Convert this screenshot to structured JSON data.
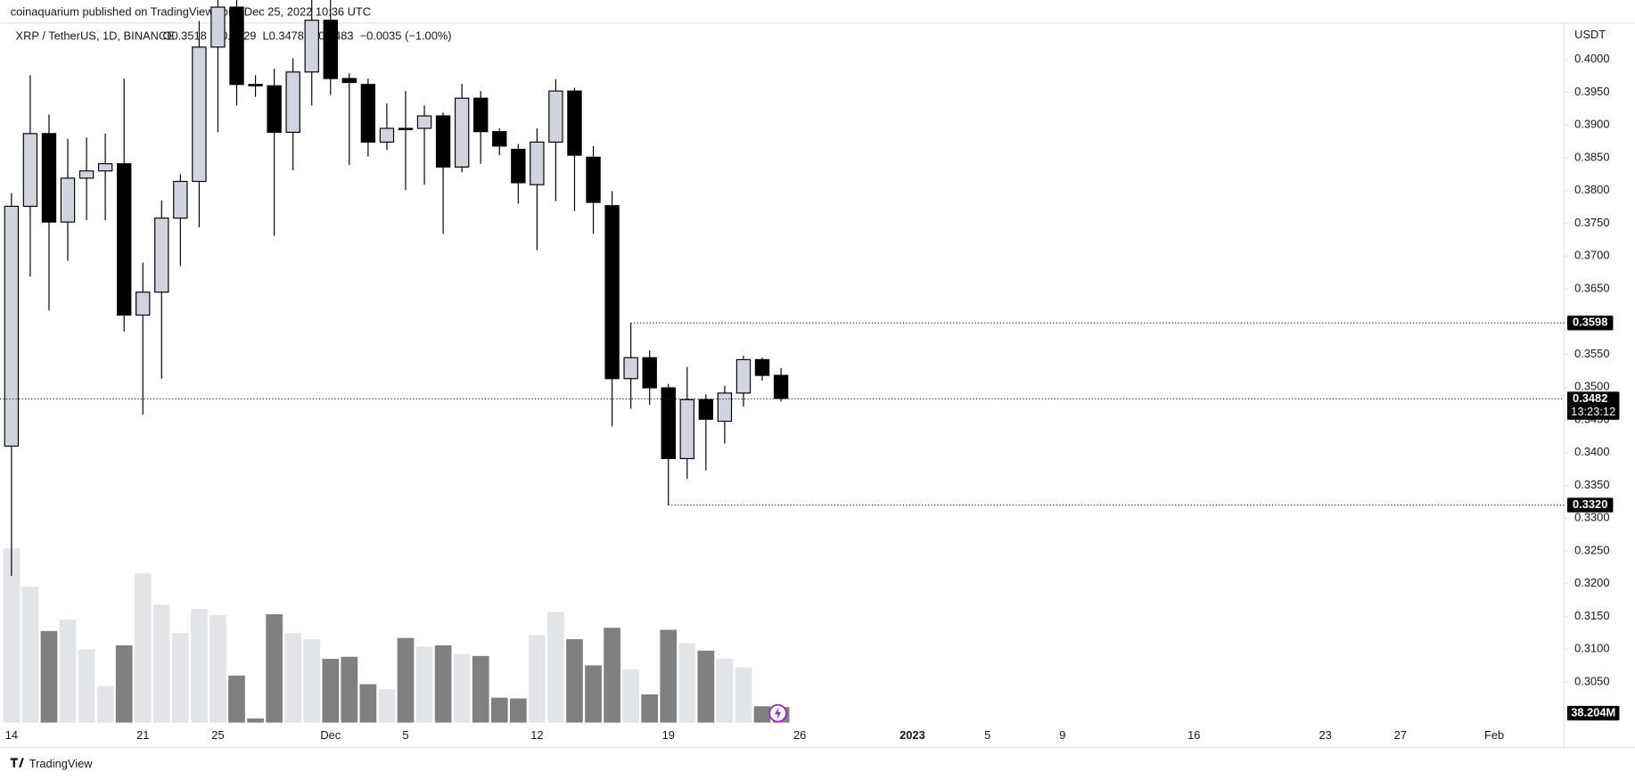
{
  "header": "coinaquarium published on TradingView.com, Dec 25, 2022 10:36 UTC",
  "footer": "TradingView",
  "chart_data": {
    "type": "candlestick",
    "symbol": "XRP / TetherUS, 1D, BINANCE",
    "legend": [
      "O0.3518",
      "H0.3529",
      "L0.3478",
      "C0.3483",
      "−0.0035 (−1.00%)"
    ],
    "currency": "USDT",
    "x": [
      "2022-11-14",
      "2022-11-15",
      "2022-11-16",
      "2022-11-17",
      "2022-11-18",
      "2022-11-19",
      "2022-11-20",
      "2022-11-21",
      "2022-11-22",
      "2022-11-23",
      "2022-11-24",
      "2022-11-25",
      "2022-11-26",
      "2022-11-27",
      "2022-11-28",
      "2022-11-29",
      "2022-11-30",
      "2022-12-01",
      "2022-12-02",
      "2022-12-03",
      "2022-12-04",
      "2022-12-05",
      "2022-12-06",
      "2022-12-07",
      "2022-12-08",
      "2022-12-09",
      "2022-12-10",
      "2022-12-11",
      "2022-12-12",
      "2022-12-13",
      "2022-12-14",
      "2022-12-15",
      "2022-12-16",
      "2022-12-17",
      "2022-12-18",
      "2022-12-19",
      "2022-12-20",
      "2022-12-21",
      "2022-12-22",
      "2022-12-23",
      "2022-12-24",
      "2022-12-25"
    ],
    "open": [
      0.341,
      0.3776,
      0.3887,
      0.3752,
      0.3819,
      0.383,
      0.3841,
      0.361,
      0.3645,
      0.3758,
      0.3814,
      0.4019,
      0.408,
      0.3962,
      0.396,
      0.3889,
      0.3981,
      0.406,
      0.3971,
      0.3962,
      0.3874,
      0.3895,
      0.3895,
      0.3914,
      0.3836,
      0.3941,
      0.389,
      0.3863,
      0.3809,
      0.3874,
      0.3952,
      0.3851,
      0.3777,
      0.3513,
      0.3545,
      0.3499,
      0.3391,
      0.3481,
      0.3448,
      0.3491,
      0.3542,
      0.3518
    ],
    "high": [
      0.3796,
      0.3976,
      0.3916,
      0.3879,
      0.3881,
      0.3887,
      0.3971,
      0.369,
      0.3785,
      0.3825,
      0.4059,
      0.411,
      0.411,
      0.3976,
      0.3986,
      0.4002,
      0.41,
      0.41,
      0.3979,
      0.3971,
      0.3933,
      0.3952,
      0.393,
      0.3919,
      0.3963,
      0.3952,
      0.3895,
      0.3871,
      0.3895,
      0.397,
      0.3957,
      0.3868,
      0.3799,
      0.3598,
      0.3556,
      0.3505,
      0.3531,
      0.3489,
      0.3502,
      0.3548,
      0.3545,
      0.3529
    ],
    "low": [
      0.3212,
      0.3669,
      0.3617,
      0.3693,
      0.3755,
      0.3755,
      0.3585,
      0.3458,
      0.3513,
      0.3685,
      0.3744,
      0.3889,
      0.393,
      0.3943,
      0.3731,
      0.3831,
      0.393,
      0.3946,
      0.3839,
      0.3852,
      0.3862,
      0.3801,
      0.3809,
      0.3734,
      0.3828,
      0.3841,
      0.3854,
      0.378,
      0.3709,
      0.3784,
      0.3769,
      0.3734,
      0.344,
      0.3467,
      0.3473,
      0.332,
      0.336,
      0.3373,
      0.3414,
      0.347,
      0.351,
      0.3478
    ],
    "close": [
      0.3776,
      0.3887,
      0.3752,
      0.3819,
      0.383,
      0.3841,
      0.361,
      0.3645,
      0.3758,
      0.3814,
      0.4019,
      0.408,
      0.3962,
      0.396,
      0.3889,
      0.3981,
      0.406,
      0.3971,
      0.3965,
      0.3874,
      0.3895,
      0.3893,
      0.3914,
      0.3836,
      0.3941,
      0.389,
      0.3868,
      0.3812,
      0.3874,
      0.3952,
      0.3854,
      0.3782,
      0.3513,
      0.3545,
      0.3499,
      0.3391,
      0.3481,
      0.3451,
      0.3491,
      0.3542,
      0.3518,
      0.3483
    ],
    "volume": {
      "values": [
        426,
        332,
        224,
        252,
        179,
        89,
        189,
        365,
        288,
        219,
        278,
        263,
        115,
        10,
        265,
        219,
        204,
        156,
        161,
        94,
        82,
        207,
        186,
        189,
        168,
        163,
        61,
        59,
        214,
        270,
        204,
        140,
        232,
        130,
        69,
        227,
        194,
        176,
        156,
        135,
        40,
        38.204
      ],
      "last_label": "38.204M",
      "lim": [
        0,
        510
      ]
    },
    "up_color": "#d1d4dc",
    "down_color": "#000000",
    "volume_up_color": "#e3e4e8",
    "volume_down_color": "#808080",
    "ylim": [
      0.2988,
      0.4059
    ],
    "yticks": [
      {
        "value": 0.305,
        "label": "0.3050"
      },
      {
        "value": 0.31,
        "label": "0.3100"
      },
      {
        "value": 0.315,
        "label": "0.3150"
      },
      {
        "value": 0.32,
        "label": "0.3200"
      },
      {
        "value": 0.325,
        "label": "0.3250"
      },
      {
        "value": 0.33,
        "label": "0.3300"
      },
      {
        "value": 0.335,
        "label": "0.3350"
      },
      {
        "value": 0.34,
        "label": "0.3400"
      },
      {
        "value": 0.345,
        "label": "0.3450"
      },
      {
        "value": 0.35,
        "label": "0.3500"
      },
      {
        "value": 0.355,
        "label": "0.3550"
      },
      {
        "value": 0.36,
        "label": "0.3600"
      },
      {
        "value": 0.365,
        "label": "0.3650"
      },
      {
        "value": 0.37,
        "label": "0.3700"
      },
      {
        "value": 0.375,
        "label": "0.3750"
      },
      {
        "value": 0.38,
        "label": "0.3800"
      },
      {
        "value": 0.385,
        "label": "0.3850"
      },
      {
        "value": 0.39,
        "label": "0.3900"
      },
      {
        "value": 0.395,
        "label": "0.3950"
      },
      {
        "value": 0.4,
        "label": "0.4000"
      }
    ],
    "xticks": [
      {
        "value": "2022-11-14",
        "label": "14"
      },
      {
        "value": "2022-11-21",
        "label": "21"
      },
      {
        "value": "2022-11-25",
        "label": "25"
      },
      {
        "value": "2022-12-01",
        "label": "Dec"
      },
      {
        "value": "2022-12-05",
        "label": "5"
      },
      {
        "value": "2022-12-12",
        "label": "12"
      },
      {
        "value": "2022-12-19",
        "label": "19"
      },
      {
        "value": "2022-12-26",
        "label": "26"
      },
      {
        "value": "2023-01-01",
        "label": "2023"
      },
      {
        "value": "2023-01-05",
        "label": "5"
      },
      {
        "value": "2023-01-09",
        "label": "9"
      },
      {
        "value": "2023-01-16",
        "label": "16"
      },
      {
        "value": "2023-01-23",
        "label": "23"
      },
      {
        "value": "2023-01-27",
        "label": "27"
      },
      {
        "value": "2023-02-01",
        "label": "Feb"
      }
    ],
    "price_lines": [
      {
        "value": 0.3598,
        "label": "0.3598",
        "from": "2022-12-17"
      },
      {
        "value": 0.332,
        "label": "0.3320",
        "from": "2022-12-19"
      }
    ],
    "last_price": {
      "value": 0.3482,
      "label": "0.3482",
      "countdown": "13:23:12"
    },
    "grid": false
  }
}
